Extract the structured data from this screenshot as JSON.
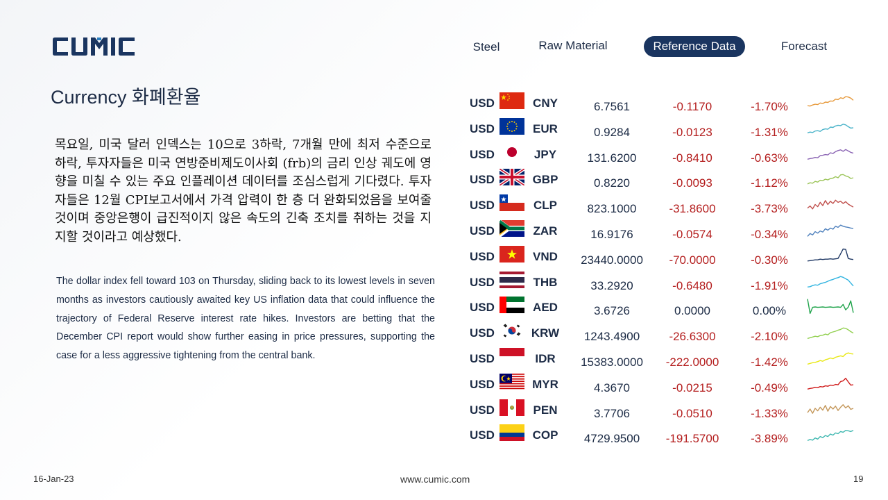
{
  "brand": {
    "logo_text": "CUMIC",
    "logo_color": "#1a3560",
    "logo_accent": "#2a7fc0"
  },
  "nav": {
    "items": [
      {
        "label": "Steel",
        "active": false
      },
      {
        "label": "Raw Material",
        "active": false
      },
      {
        "label": "Reference Data",
        "active": true
      },
      {
        "label": "Forecast",
        "active": false
      }
    ]
  },
  "page": {
    "title": "Currency 화폐환율",
    "korean_text": "목요일, 미국 달러 인덱스는 10으로 3하락, 7개월 만에 최저 수준으로 하락, 투자자들은 미국 연방준비제도이사회 (frb)의 금리 인상 궤도에 영향을 미칠 수 있는 주요 인플레이션 데이터를 조심스럽게 기다렸다. 투자자들은 12월 CPI보고서에서 가격 압력이 한 층 더 완화되었음을 보여줄 것이며 중앙은행이 급진적이지 않은 속도의 긴축 조치를 취하는 것을 지지할 것이라고 예상했다.",
    "english_text": "The dollar index fell toward 103 on Thursday, sliding back to its lowest levels in seven months as investors cautiously awaited key US inflation data that could influence the trajectory of Federal Reserve interest rate hikes. Investors are betting that the December CPI report would show further easing in price pressures, supporting the case for a less aggressive tightening from the central bank."
  },
  "footer": {
    "date": "16-Jan-23",
    "website": "www.cumic.com",
    "page_number": "19"
  },
  "colors": {
    "negative": "#b41e1e",
    "neutral": "#1c2b45",
    "active_tab": "#1a3560"
  },
  "fx": [
    {
      "base": "USD",
      "flag": "china-flag-icon",
      "quote": "CNY",
      "price": "6.7561",
      "change": "-0.1170",
      "pct": "-1.70%",
      "dir": "neg",
      "spark_color": "#e79a3c"
    },
    {
      "base": "USD",
      "flag": "eu-flag-icon",
      "quote": "EUR",
      "price": "0.9284",
      "change": "-0.0123",
      "pct": "-1.31%",
      "dir": "neg",
      "spark_color": "#49b3c9"
    },
    {
      "base": "USD",
      "flag": "japan-flag-icon",
      "quote": "JPY",
      "price": "131.6200",
      "change": "-0.8410",
      "pct": "-0.63%",
      "dir": "neg",
      "spark_color": "#8a63b3"
    },
    {
      "base": "USD",
      "flag": "uk-flag-icon",
      "quote": "GBP",
      "price": "0.8220",
      "change": "-0.0093",
      "pct": "-1.12%",
      "dir": "neg",
      "spark_color": "#9cc55a"
    },
    {
      "base": "USD",
      "flag": "chile-flag-icon",
      "quote": "CLP",
      "price": "823.1000",
      "change": "-31.8600",
      "pct": "-3.73%",
      "dir": "neg",
      "spark_color": "#c0504d"
    },
    {
      "base": "USD",
      "flag": "south-africa-flag-icon",
      "quote": "ZAR",
      "price": "16.9176",
      "change": "-0.0574",
      "pct": "-0.34%",
      "dir": "neg",
      "spark_color": "#4f81bd"
    },
    {
      "base": "USD",
      "flag": "vietnam-flag-icon",
      "quote": "VND",
      "price": "23440.0000",
      "change": "-70.0000",
      "pct": "-0.30%",
      "dir": "neg",
      "spark_color": "#1f3864"
    },
    {
      "base": "USD",
      "flag": "thailand-flag-icon",
      "quote": "THB",
      "price": "33.2920",
      "change": "-0.6480",
      "pct": "-1.91%",
      "dir": "neg",
      "spark_color": "#2fb3e0"
    },
    {
      "base": "USD",
      "flag": "uae-flag-icon",
      "quote": "AED",
      "price": "3.6726",
      "change": "0.0000",
      "pct": "0.00%",
      "dir": "flat",
      "spark_color": "#1ea34a"
    },
    {
      "base": "USD",
      "flag": "south-korea-flag-icon",
      "quote": "KRW",
      "price": "1243.4900",
      "change": "-26.6300",
      "pct": "-2.10%",
      "dir": "neg",
      "spark_color": "#92d050"
    },
    {
      "base": "USD",
      "flag": "indonesia-flag-icon",
      "quote": "IDR",
      "price": "15383.0000",
      "change": "-222.0000",
      "pct": "-1.42%",
      "dir": "neg",
      "spark_color": "#e8e814"
    },
    {
      "base": "USD",
      "flag": "malaysia-flag-icon",
      "quote": "MYR",
      "price": "4.3670",
      "change": "-0.0215",
      "pct": "-0.49%",
      "dir": "neg",
      "spark_color": "#d01c1c"
    },
    {
      "base": "USD",
      "flag": "peru-flag-icon",
      "quote": "PEN",
      "price": "3.7706",
      "change": "-0.0510",
      "pct": "-1.33%",
      "dir": "neg",
      "spark_color": "#c4975a"
    },
    {
      "base": "USD",
      "flag": "colombia-flag-icon",
      "quote": "COP",
      "price": "4729.9500",
      "change": "-191.5700",
      "pct": "-3.89%",
      "dir": "neg",
      "spark_color": "#3fb8b0"
    }
  ]
}
